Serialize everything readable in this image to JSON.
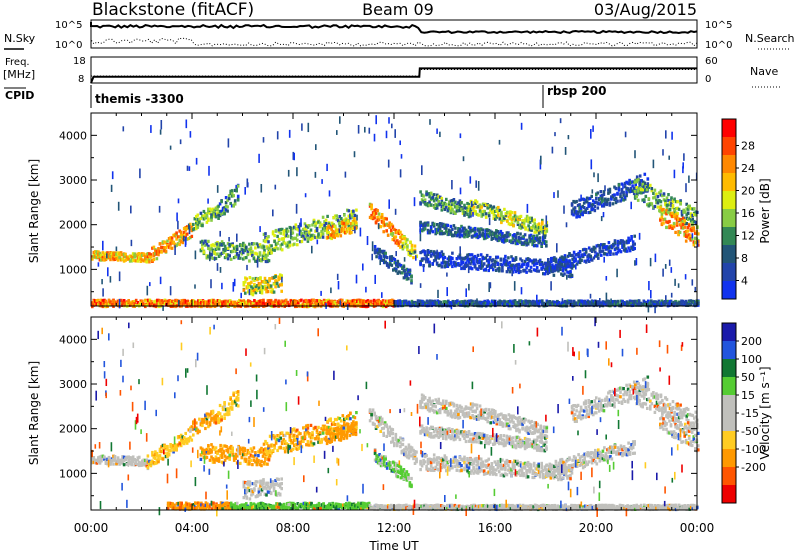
{
  "header": {
    "station": "Blackstone (fitACF)",
    "beam": "Beam 09",
    "date": "03/Aug/2015"
  },
  "summary": {
    "nsky_label": "N.Sky",
    "nsky_ticks": [
      "10^5",
      "10^0"
    ],
    "nsearch_label": "N.Search",
    "nsearch_ticks": [
      "10^5",
      "10^0"
    ],
    "freq_label_1": "Freq.",
    "freq_label_2": "[MHz]",
    "freq_ticks": [
      "18",
      "8"
    ],
    "nave_label": "Nave",
    "nave_ticks": [
      "60",
      "0"
    ],
    "cpid_label": "CPID",
    "cpid_items": [
      {
        "name": "themis -3300",
        "start_hour": 0
      },
      {
        "name": "rbsp 200",
        "start_hour": 18
      }
    ],
    "freq_series": {
      "hours": [
        0,
        0.1,
        13,
        13.02,
        24
      ],
      "mhz": [
        8,
        10.4,
        10.4,
        13.6,
        13.6
      ]
    }
  },
  "chart_data": [
    {
      "type": "heatmap",
      "panel": "power",
      "ylabel": "Slant Range [km]",
      "yticks": [
        "4000",
        "3000",
        "2000",
        "1000"
      ],
      "ylim": [
        180,
        4500
      ],
      "xlim": [
        0,
        24
      ],
      "colorbar_label": "Power [dB]",
      "colorbar_ticks": [
        "28",
        "24",
        "20",
        "16",
        "12",
        "8",
        "4"
      ],
      "colorbar_colors": [
        "#ff0000",
        "#ff4400",
        "#ff8800",
        "#ffbb00",
        "#ddee11",
        "#88cc44",
        "#338855",
        "#225577",
        "#2244aa",
        "#1133ee"
      ],
      "bands": [
        {
          "t0": 0.0,
          "t1": 2.2,
          "r0": 1300,
          "r1": 1250,
          "w": 120,
          "v": 22
        },
        {
          "t0": 2.2,
          "t1": 4.0,
          "r0": 1250,
          "r1": 1900,
          "w": 200,
          "v": 24
        },
        {
          "t0": 4.0,
          "t1": 5.0,
          "r0": 2000,
          "r1": 2300,
          "w": 200,
          "v": 15
        },
        {
          "t0": 5.0,
          "t1": 5.8,
          "r0": 2300,
          "r1": 2700,
          "w": 250,
          "v": 12
        },
        {
          "t0": 4.3,
          "t1": 7.0,
          "r0": 1450,
          "r1": 1350,
          "w": 250,
          "v": 14
        },
        {
          "t0": 6.8,
          "t1": 10.5,
          "r0": 1550,
          "r1": 2150,
          "w": 300,
          "v": 15
        },
        {
          "t0": 9.3,
          "t1": 10.5,
          "r0": 1800,
          "r1": 2000,
          "w": 200,
          "v": 22
        },
        {
          "t0": 11.0,
          "t1": 12.3,
          "r0": 2300,
          "r1": 1600,
          "w": 220,
          "v": 24
        },
        {
          "t0": 12.3,
          "t1": 12.9,
          "r0": 1600,
          "r1": 1300,
          "w": 200,
          "v": 18
        },
        {
          "t0": 11.2,
          "t1": 12.7,
          "r0": 1400,
          "r1": 800,
          "w": 180,
          "v": 9
        },
        {
          "t0": 13.0,
          "t1": 15.0,
          "r0": 2600,
          "r1": 2300,
          "w": 200,
          "v": 13
        },
        {
          "t0": 15.0,
          "t1": 18.0,
          "r0": 2400,
          "r1": 1900,
          "w": 200,
          "v": 17
        },
        {
          "t0": 13.0,
          "t1": 18.0,
          "r0": 1950,
          "r1": 1600,
          "w": 150,
          "v": 9
        },
        {
          "t0": 13.0,
          "t1": 19.0,
          "r0": 1250,
          "r1": 1000,
          "w": 220,
          "v": 6
        },
        {
          "t0": 18.0,
          "t1": 21.5,
          "r0": 1050,
          "r1": 1600,
          "w": 200,
          "v": 6
        },
        {
          "t0": 19.0,
          "t1": 22.0,
          "r0": 2300,
          "r1": 2950,
          "w": 250,
          "v": 7
        },
        {
          "t0": 21.5,
          "t1": 24.0,
          "r0": 2800,
          "r1": 2100,
          "w": 300,
          "v": 14
        },
        {
          "t0": 22.5,
          "t1": 24.0,
          "r0": 2200,
          "r1": 1700,
          "w": 300,
          "v": 24
        },
        {
          "t0": 6.0,
          "t1": 7.5,
          "r0": 600,
          "r1": 700,
          "w": 250,
          "v": 20
        },
        {
          "t0": 0.0,
          "t1": 12.0,
          "r0": 230,
          "r1": 230,
          "w": 90,
          "v": 26
        },
        {
          "t0": 12.0,
          "t1": 24.0,
          "r0": 230,
          "r1": 230,
          "w": 70,
          "v": 8
        }
      ]
    },
    {
      "type": "heatmap",
      "panel": "velocity",
      "ylabel": "Slant Range [km]",
      "yticks": [
        "4000",
        "3000",
        "2000",
        "1000"
      ],
      "ylim": [
        180,
        4500
      ],
      "xlim": [
        0,
        24
      ],
      "xlabel": "Time UT",
      "xticks": [
        "00:00",
        "04:00",
        "08:00",
        "12:00",
        "16:00",
        "20:00",
        "00:00"
      ],
      "colorbar_label": "Velocity [m s⁻¹]",
      "colorbar_ticks": [
        "200",
        "100",
        "50",
        "15",
        "-15",
        "-50",
        "-100",
        "-200"
      ],
      "colorbar_colors": [
        "#1a1aaa",
        "#2255dd",
        "#117733",
        "#55cc33",
        "#c0c0bc",
        "#c0c0bc",
        "#ffcc22",
        "#ff9900",
        "#ff5500",
        "#ee0000"
      ],
      "bands": [
        {
          "t0": 0.0,
          "t1": 2.2,
          "r0": 1300,
          "r1": 1250,
          "w": 120,
          "v": 0
        },
        {
          "t0": 2.2,
          "t1": 4.0,
          "r0": 1250,
          "r1": 1900,
          "w": 200,
          "v": -40
        },
        {
          "t0": 4.0,
          "t1": 5.0,
          "r0": 2000,
          "r1": 2300,
          "w": 200,
          "v": -60
        },
        {
          "t0": 5.0,
          "t1": 5.8,
          "r0": 2300,
          "r1": 2700,
          "w": 250,
          "v": -40
        },
        {
          "t0": 4.3,
          "t1": 7.0,
          "r0": 1450,
          "r1": 1350,
          "w": 250,
          "v": -60
        },
        {
          "t0": 6.8,
          "t1": 10.5,
          "r0": 1550,
          "r1": 2150,
          "w": 300,
          "v": -50
        },
        {
          "t0": 9.3,
          "t1": 10.5,
          "r0": 1800,
          "r1": 2000,
          "w": 200,
          "v": -80
        },
        {
          "t0": 11.0,
          "t1": 12.3,
          "r0": 2300,
          "r1": 1600,
          "w": 220,
          "v": 0
        },
        {
          "t0": 12.3,
          "t1": 12.9,
          "r0": 1600,
          "r1": 1300,
          "w": 200,
          "v": 0
        },
        {
          "t0": 11.2,
          "t1": 12.7,
          "r0": 1400,
          "r1": 800,
          "w": 180,
          "v": 20
        },
        {
          "t0": 13.0,
          "t1": 15.0,
          "r0": 2600,
          "r1": 2300,
          "w": 200,
          "v": 0
        },
        {
          "t0": 15.0,
          "t1": 18.0,
          "r0": 2400,
          "r1": 1900,
          "w": 200,
          "v": 0
        },
        {
          "t0": 13.0,
          "t1": 18.0,
          "r0": 1950,
          "r1": 1600,
          "w": 150,
          "v": 0
        },
        {
          "t0": 13.0,
          "t1": 19.0,
          "r0": 1250,
          "r1": 1000,
          "w": 220,
          "v": 0
        },
        {
          "t0": 18.0,
          "t1": 21.5,
          "r0": 1050,
          "r1": 1600,
          "w": 200,
          "v": 0
        },
        {
          "t0": 19.0,
          "t1": 22.0,
          "r0": 2300,
          "r1": 2950,
          "w": 250,
          "v": 0
        },
        {
          "t0": 21.5,
          "t1": 24.0,
          "r0": 2800,
          "r1": 2100,
          "w": 300,
          "v": 0
        },
        {
          "t0": 22.5,
          "t1": 24.0,
          "r0": 2200,
          "r1": 1700,
          "w": 300,
          "v": 0
        },
        {
          "t0": 6.0,
          "t1": 7.5,
          "r0": 600,
          "r1": 700,
          "w": 250,
          "v": 0
        },
        {
          "t0": 3.0,
          "t1": 5.5,
          "r0": 260,
          "r1": 260,
          "w": 90,
          "v": -90
        },
        {
          "t0": 5.5,
          "t1": 11.0,
          "r0": 260,
          "r1": 260,
          "w": 80,
          "v": 40
        },
        {
          "t0": 11.0,
          "t1": 24.0,
          "r0": 230,
          "r1": 230,
          "w": 60,
          "v": 0
        }
      ]
    }
  ]
}
